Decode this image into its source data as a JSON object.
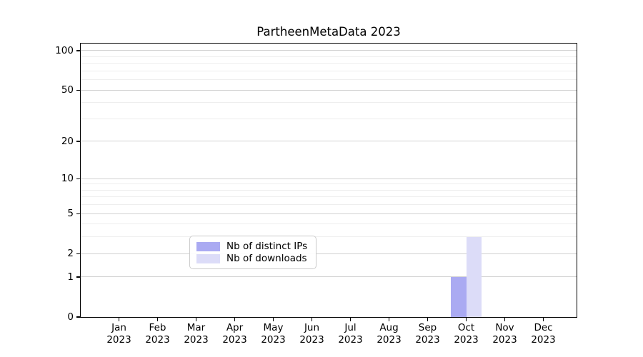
{
  "chart_data": {
    "type": "bar",
    "title": "PartheenMetaData 2023",
    "xlabel": "",
    "ylabel": "",
    "categories": [
      "Jan",
      "Feb",
      "Mar",
      "Apr",
      "May",
      "Jun",
      "Jul",
      "Aug",
      "Sep",
      "Oct",
      "Nov",
      "Dec"
    ],
    "category_year_line": "2023",
    "series": [
      {
        "name": "Nb of distinct IPs",
        "color": "#aaaaf2",
        "values": [
          0,
          0,
          0,
          0,
          0,
          0,
          0,
          0,
          0,
          1,
          0,
          0
        ]
      },
      {
        "name": "Nb of downloads",
        "color": "#dcdcf8",
        "values": [
          0,
          0,
          0,
          0,
          0,
          0,
          0,
          0,
          0,
          3,
          0,
          0
        ]
      }
    ],
    "y_axis": {
      "scale": "log10(1+x)",
      "tick_values": [
        100,
        50,
        20,
        10,
        5,
        2,
        1,
        0
      ],
      "tick_labels": [
        "100",
        "50",
        "20",
        "10",
        "5",
        "2",
        "1",
        "0"
      ],
      "minor_gridline_values": [
        3,
        4,
        6,
        7,
        8,
        9,
        30,
        40,
        60,
        70,
        80,
        90
      ],
      "range_max": 113
    },
    "legend": {
      "position": "bottom-center",
      "entries": [
        "Nb of distinct IPs",
        "Nb of downloads"
      ]
    },
    "grid": "on",
    "colors": {
      "major_grid": "#d2d2d2",
      "minor_grid": "#eeeeee",
      "spine": "#000000",
      "background": "#ffffff"
    }
  }
}
